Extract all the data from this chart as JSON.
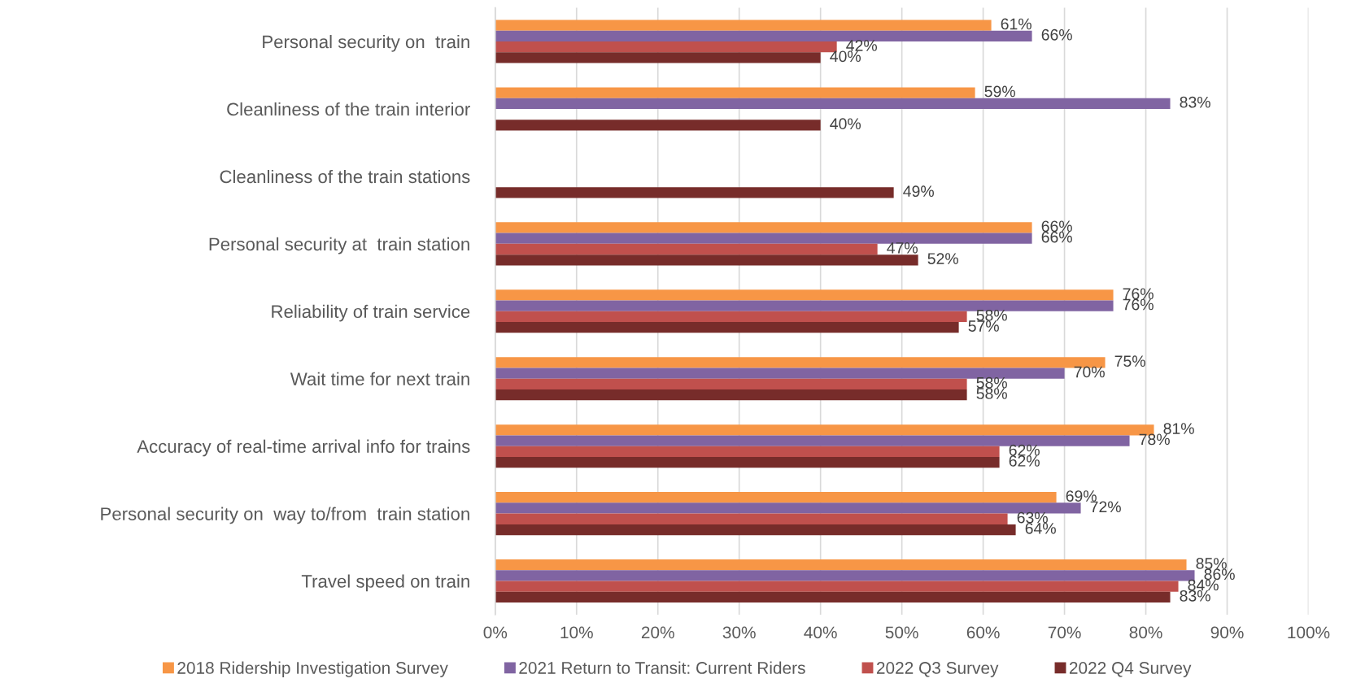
{
  "chart_data": {
    "type": "bar",
    "orientation": "horizontal",
    "categories": [
      "Personal security on  train",
      "Cleanliness of the train interior",
      "Cleanliness of the train stations",
      "Personal security at  train station",
      "Reliability of train service",
      "Wait time for next train",
      "Accuracy of real-time arrival info for trains",
      "Personal security on  way to/from  train station",
      "Travel speed on train"
    ],
    "series": [
      {
        "name": "2018 Ridership Investigation Survey",
        "color": "#f79646",
        "values": [
          61,
          59,
          null,
          66,
          76,
          75,
          81,
          69,
          85
        ],
        "value_labels": [
          "61%",
          "59%",
          null,
          "66%",
          "76%",
          "75%",
          "81%",
          "69%",
          "85%"
        ]
      },
      {
        "name": "2021 Return to Transit: Current Riders",
        "color": "#8064a2",
        "values": [
          66,
          83,
          null,
          66,
          76,
          70,
          78,
          72,
          86
        ],
        "value_labels": [
          "66%",
          "83%",
          null,
          "66%",
          "76%",
          "70%",
          "78%",
          "72%",
          "86%"
        ]
      },
      {
        "name": "2022 Q3 Survey",
        "color": "#c0504d",
        "values": [
          42,
          null,
          null,
          47,
          58,
          58,
          62,
          63,
          84
        ],
        "value_labels": [
          "42%",
          null,
          null,
          "47%",
          "58%",
          "58%",
          "62%",
          "63%",
          "84%"
        ]
      },
      {
        "name": "2022 Q4 Survey",
        "color": "#772c2a",
        "values": [
          40,
          40,
          49,
          52,
          57,
          58,
          62,
          64,
          83
        ],
        "value_labels": [
          "40%",
          "40%",
          "49%",
          "52%",
          "57%",
          "58%",
          "62%",
          "64%",
          "83%"
        ]
      }
    ],
    "xlim": [
      0,
      100
    ],
    "xticks": [
      {
        "value": 0,
        "label": "0%"
      },
      {
        "value": 10,
        "label": "10%"
      },
      {
        "value": 20,
        "label": "20%"
      },
      {
        "value": 30,
        "label": "30%"
      },
      {
        "value": 40,
        "label": "40%"
      },
      {
        "value": 50,
        "label": "50%"
      },
      {
        "value": 60,
        "label": "60%"
      },
      {
        "value": 70,
        "label": "70%"
      },
      {
        "value": 80,
        "label": "80%"
      },
      {
        "value": 90,
        "label": "90%"
      },
      {
        "value": 100,
        "label": "100%"
      }
    ],
    "grid": "x",
    "legend": "bottom"
  }
}
